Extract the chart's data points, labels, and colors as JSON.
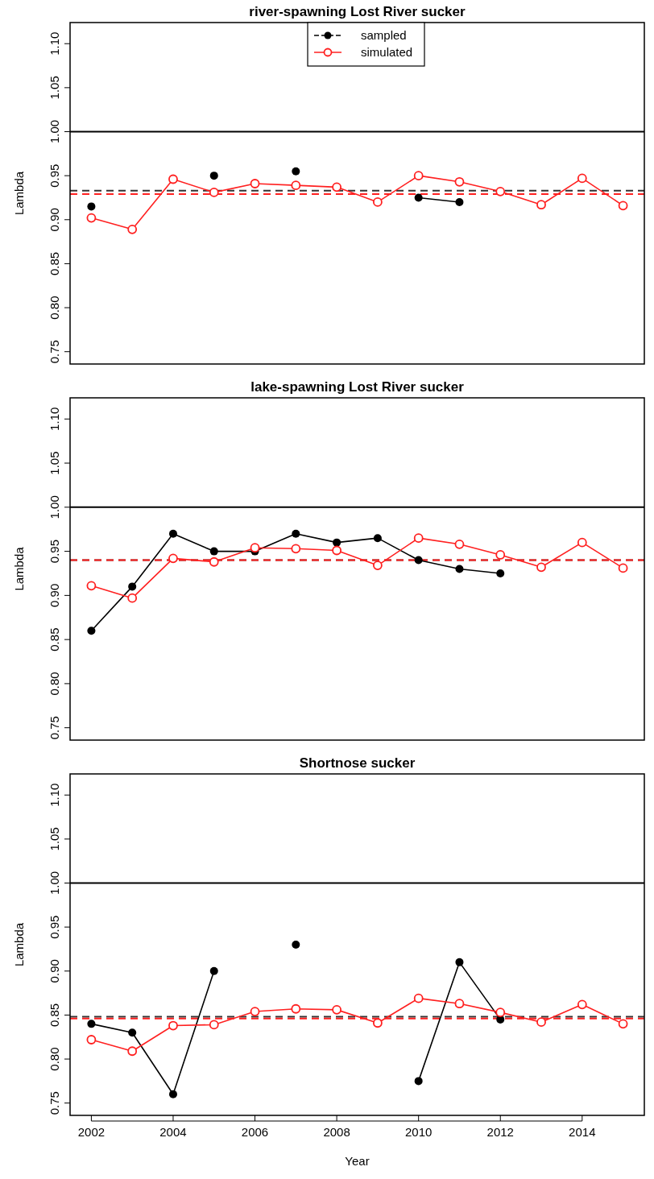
{
  "chart_data": [
    {
      "type": "line",
      "title": "river-spawning Lost River sucker",
      "ylabel": "Lambda",
      "x": [
        2002,
        2003,
        2004,
        2005,
        2006,
        2007,
        2008,
        2009,
        2010,
        2011,
        2012,
        2013,
        2014,
        2015
      ],
      "xlim": [
        2001.48,
        2015.52
      ],
      "ylim": [
        0.736,
        1.124
      ],
      "yticks": [
        0.75,
        {
          "value": 0.8,
          "label": "0.80"
        },
        0.85,
        {
          "value": 0.9,
          "label": "0.90"
        },
        0.95,
        {
          "value": 1,
          "label": "1.00"
        },
        1.05,
        {
          "value": 1.1,
          "label": "1.10"
        }
      ],
      "tick_labels": "y",
      "marker": "circle",
      "legend": "top",
      "grid": false,
      "ref_lines": [
        {
          "axis": "y",
          "value": 1,
          "color": "#000000",
          "line_style": "solid"
        },
        {
          "axis": "y",
          "value": 0.933,
          "color": "#333333",
          "line_style": "dashed"
        },
        {
          "axis": "y",
          "value": 0.929,
          "color": "#ff2020",
          "line_style": "dashed"
        }
      ],
      "series": [
        {
          "name": "sampled",
          "color": "#000000",
          "values": [
            0.915,
            null,
            null,
            0.95,
            null,
            0.955,
            null,
            null,
            0.925,
            0.92,
            null,
            null,
            null,
            null
          ]
        },
        {
          "name": "simulated",
          "color": "#ff2020",
          "values": [
            0.902,
            0.889,
            0.946,
            0.931,
            0.941,
            0.939,
            0.937,
            0.92,
            0.95,
            0.943,
            0.932,
            0.917,
            0.947,
            0.916
          ]
        }
      ]
    },
    {
      "type": "line",
      "title": "lake-spawning Lost River sucker",
      "ylabel": "Lambda",
      "x": [
        2002,
        2003,
        2004,
        2005,
        2006,
        2007,
        2008,
        2009,
        2010,
        2011,
        2012,
        2013,
        2014,
        2015
      ],
      "xlim": [
        2001.48,
        2015.52
      ],
      "ylim": [
        0.736,
        1.124
      ],
      "yticks": [
        0.75,
        {
          "value": 0.8,
          "label": "0.80"
        },
        0.85,
        {
          "value": 0.9,
          "label": "0.90"
        },
        0.95,
        {
          "value": 1,
          "label": "1.00"
        },
        1.05,
        {
          "value": 1.1,
          "label": "1.10"
        }
      ],
      "tick_labels": "y",
      "marker": "circle",
      "grid": false,
      "ref_lines": [
        {
          "axis": "y",
          "value": 1,
          "color": "#000000",
          "line_style": "solid"
        },
        {
          "axis": "y",
          "value": 0.94,
          "color": "#333333",
          "line_style": "dashed"
        },
        {
          "axis": "y",
          "value": 0.94,
          "color": "#ff2020",
          "line_style": "dashed"
        }
      ],
      "series": [
        {
          "color": "#000000",
          "values": [
            0.86,
            0.91,
            0.97,
            0.95,
            0.95,
            0.97,
            0.96,
            0.965,
            0.94,
            0.93,
            0.925,
            null,
            null,
            null
          ]
        },
        {
          "color": "#ff2020",
          "values": [
            0.911,
            0.897,
            0.942,
            0.938,
            0.954,
            0.953,
            0.951,
            0.934,
            0.965,
            0.958,
            0.946,
            0.932,
            0.96,
            0.931
          ]
        }
      ]
    },
    {
      "type": "line",
      "title": "Shortnose sucker",
      "xlabel": "Year",
      "ylabel": "Lambda",
      "x": [
        2002,
        2003,
        2004,
        2005,
        2006,
        2007,
        2008,
        2009,
        2010,
        2011,
        2012,
        2013,
        2014,
        2015
      ],
      "xlim": [
        2001.48,
        2015.52
      ],
      "xticks": [
        2002,
        2004,
        2006,
        2008,
        2010,
        2012,
        2014
      ],
      "ylim": [
        0.736,
        1.124
      ],
      "yticks": [
        0.75,
        {
          "value": 0.8,
          "label": "0.80"
        },
        0.85,
        {
          "value": 0.9,
          "label": "0.90"
        },
        0.95,
        {
          "value": 1,
          "label": "1.00"
        },
        1.05,
        {
          "value": 1.1,
          "label": "1.10"
        }
      ],
      "marker": "circle",
      "grid": false,
      "ref_lines": [
        {
          "axis": "y",
          "value": 1,
          "color": "#000000",
          "line_style": "solid"
        },
        {
          "axis": "y",
          "value": 0.848,
          "color": "#333333",
          "line_style": "dashed"
        },
        {
          "axis": "y",
          "value": 0.846,
          "color": "#ff2020",
          "line_style": "dashed"
        }
      ],
      "series": [
        {
          "color": "#000000",
          "values": [
            0.84,
            0.83,
            0.76,
            0.9,
            null,
            0.93,
            null,
            null,
            0.775,
            0.91,
            0.845,
            null,
            null,
            null
          ]
        },
        {
          "color": "#ff2020",
          "values": [
            0.822,
            0.809,
            0.838,
            0.839,
            0.854,
            0.857,
            0.856,
            0.841,
            0.869,
            0.863,
            0.853,
            0.842,
            0.862,
            0.84
          ]
        }
      ]
    }
  ]
}
